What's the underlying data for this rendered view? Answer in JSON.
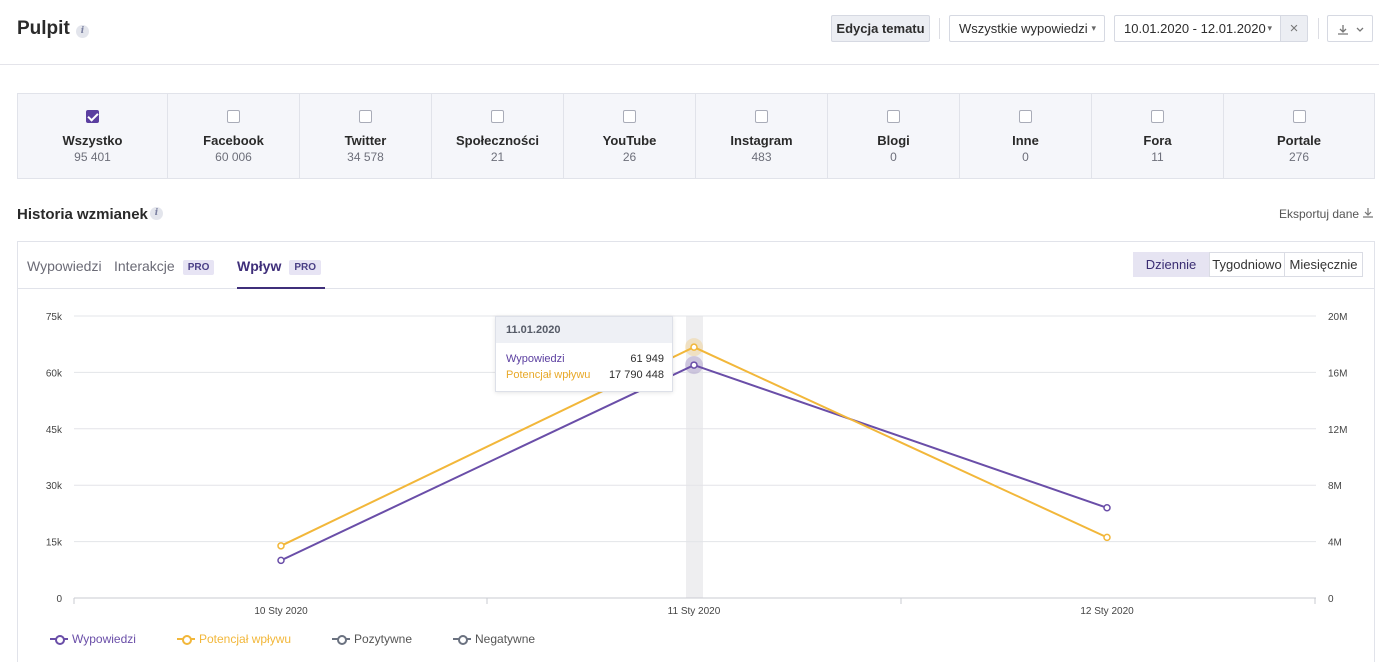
{
  "header": {
    "title": "Pulpit",
    "edit_topic_label": "Edycja tematu",
    "statements_filter": "Wszystkie wypowiedzi",
    "date_range": "10.01.2020 - 12.01.2020",
    "clear_label": "×",
    "download_label": "⤓"
  },
  "channels": [
    {
      "name": "Wszystko",
      "count": "95 401",
      "checked": true
    },
    {
      "name": "Facebook",
      "count": "60 006",
      "checked": false
    },
    {
      "name": "Twitter",
      "count": "34 578",
      "checked": false
    },
    {
      "name": "Społeczności",
      "count": "21",
      "checked": false
    },
    {
      "name": "YouTube",
      "count": "26",
      "checked": false
    },
    {
      "name": "Instagram",
      "count": "483",
      "checked": false
    },
    {
      "name": "Blogi",
      "count": "0",
      "checked": false
    },
    {
      "name": "Inne",
      "count": "0",
      "checked": false
    },
    {
      "name": "Fora",
      "count": "11",
      "checked": false
    },
    {
      "name": "Portale",
      "count": "276",
      "checked": false
    }
  ],
  "history": {
    "title": "Historia wzmianek",
    "export_label": "Eksportuj dane",
    "tabs": [
      {
        "label": "Wypowiedzi",
        "pro": ""
      },
      {
        "label": "Interakcje",
        "pro": "PRO"
      },
      {
        "label": "Wpływ",
        "pro": "PRO"
      }
    ],
    "periods": [
      "Dziennie",
      "Tygodniowo",
      "Miesięcznie"
    ]
  },
  "tooltip": {
    "date": "11.01.2020",
    "rows": [
      {
        "label": "Wypowiedzi",
        "value": "61 949"
      },
      {
        "label": "Potencjał wpływu",
        "value": "17 790 448"
      }
    ]
  },
  "chart_data": {
    "type": "line",
    "categories": [
      "10 Sty 2020",
      "11 Sty 2020",
      "12 Sty 2020"
    ],
    "y_left": {
      "ticks": [
        "0",
        "15k",
        "30k",
        "45k",
        "60k",
        "75k"
      ],
      "ylim": [
        0,
        75000
      ]
    },
    "y_right": {
      "ticks": [
        "0",
        "4M",
        "8M",
        "12M",
        "16M",
        "20M"
      ],
      "ylim": [
        0,
        20000000
      ]
    },
    "series": [
      {
        "name": "Wypowiedzi",
        "axis": "left",
        "color": "#6a4ea8",
        "values": [
          10000,
          61949,
          24000
        ]
      },
      {
        "name": "Potencjał wpływu",
        "axis": "right",
        "color": "#f2b73a",
        "values": [
          3700000,
          17790448,
          4300000
        ]
      }
    ],
    "legend": [
      {
        "name": "Wypowiedzi",
        "color": "#6a4ea8"
      },
      {
        "name": "Potencjał wpływu",
        "color": "#f2b73a"
      },
      {
        "name": "Pozytywne",
        "color": "#6b7280"
      },
      {
        "name": "Negatywne",
        "color": "#6b7280"
      }
    ],
    "grid": true,
    "legend_position": "bottom-left"
  }
}
